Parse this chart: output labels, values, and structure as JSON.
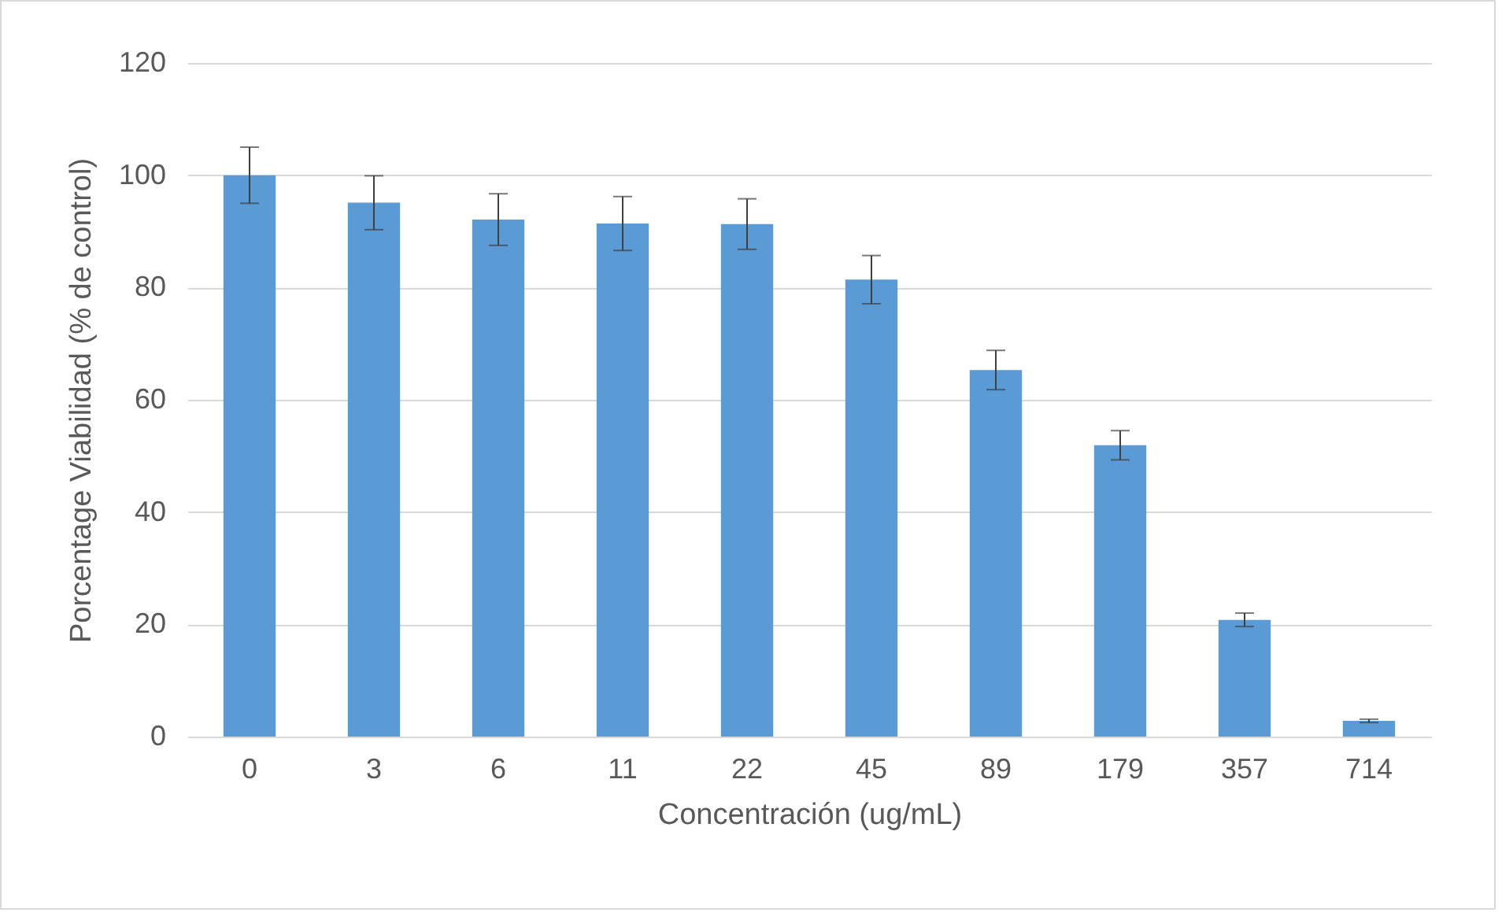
{
  "chart_data": {
    "type": "bar",
    "xlabel": "Concentración (ug/mL)",
    "ylabel": "Porcentage Viabilidad (% de control)",
    "categories": [
      "0",
      "3",
      "6",
      "11",
      "22",
      "45",
      "89",
      "179",
      "357",
      "714"
    ],
    "values": [
      100,
      95.1,
      92.1,
      91.4,
      91.3,
      81.4,
      65.3,
      51.9,
      20.8,
      2.8
    ],
    "errors": [
      5,
      4.8,
      4.6,
      4.8,
      4.5,
      4.3,
      3.5,
      2.6,
      1.2,
      0.3
    ],
    "color": "#5b9bd5",
    "ylim": [
      0,
      120
    ],
    "yticks": [
      0,
      20,
      40,
      60,
      80,
      100,
      120
    ],
    "grid": "y"
  }
}
